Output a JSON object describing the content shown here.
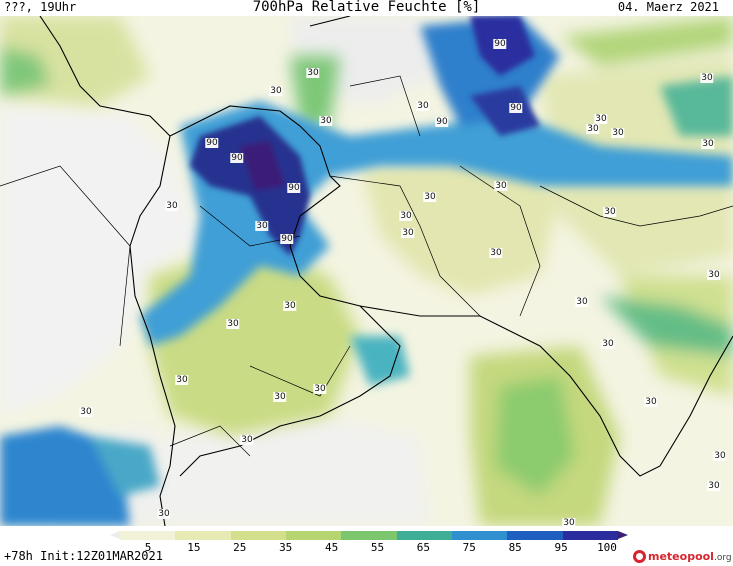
{
  "header": {
    "location": "???, 19Uhr",
    "title": "700hPa Relative Feuchte [%]",
    "date": "04. Maerz 2021"
  },
  "footer": {
    "run_info": "+78h Init:12Z01MAR2021",
    "logo_main": "meteopool",
    "logo_tld": ".org"
  },
  "colorbar": {
    "ticks": [
      "5",
      "15",
      "25",
      "35",
      "45",
      "55",
      "65",
      "75",
      "85",
      "95",
      "100"
    ],
    "colors": [
      "#ececec",
      "#f2f2d8",
      "#e8eab4",
      "#d4df8e",
      "#b6d46f",
      "#7cc76d",
      "#3fae96",
      "#2f8fcf",
      "#1f5fbf",
      "#2b2d9e",
      "#3a1e78"
    ]
  },
  "map": {
    "field": "700hPa relative humidity",
    "contour_labels": [
      "30",
      "30",
      "30",
      "30",
      "30",
      "30",
      "30",
      "30",
      "30",
      "30",
      "30",
      "30",
      "30",
      "30",
      "30",
      "30",
      "30",
      "30",
      "30",
      "30",
      "30",
      "30",
      "30",
      "30",
      "30",
      "30",
      "30",
      "30",
      "30",
      "30",
      "30",
      "30",
      "90",
      "90",
      "90",
      "90",
      "90",
      "90",
      "90"
    ]
  }
}
